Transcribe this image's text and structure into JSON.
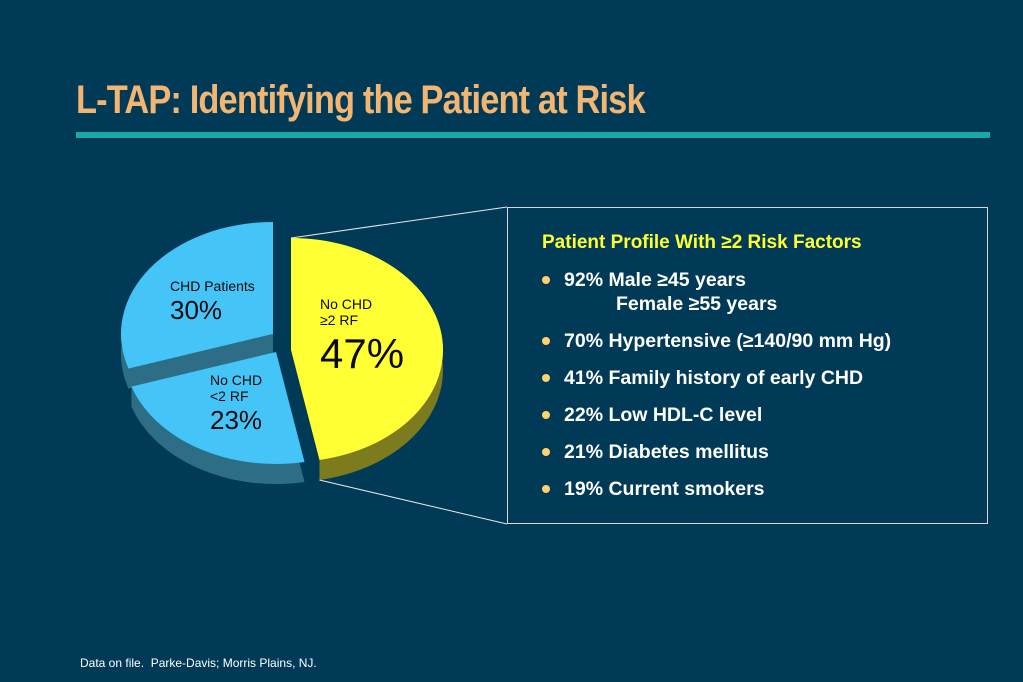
{
  "title": "L-TAP: Identifying the Patient at Risk",
  "colors": {
    "background": "#003a56",
    "title": "#f3b572",
    "rule": "#1aa7a8",
    "heading": "#ffff33"
  },
  "chart_data": {
    "type": "pie",
    "style": "3d-exploded",
    "slices": [
      {
        "label": "No CHD",
        "sublabel": "≥2 RF",
        "value": 47,
        "value_label": "47%",
        "color": "#ffff33",
        "side_color": "#7c7c1e"
      },
      {
        "label": "No CHD",
        "sublabel": "<2 RF",
        "value": 23,
        "value_label": "23%",
        "color": "#45c4f8",
        "side_color": "#2d6e86"
      },
      {
        "label": "CHD Patients",
        "sublabel": "",
        "value": 30,
        "value_label": "30%",
        "color": "#45c4f8",
        "side_color": "#2d6e86"
      }
    ]
  },
  "profile": {
    "heading": "Patient Profile With ≥2 Risk Factors",
    "items": [
      {
        "line1": "92% Male ≥45 years",
        "line2": "Female ≥55 years"
      },
      {
        "line1": "70% Hypertensive (≥140/90 mm Hg)",
        "line2": ""
      },
      {
        "line1": "41% Family history of early CHD",
        "line2": ""
      },
      {
        "line1": "22% Low HDL-C level",
        "line2": ""
      },
      {
        "line1": "21% Diabetes mellitus",
        "line2": ""
      },
      {
        "line1": "19% Current smokers",
        "line2": ""
      }
    ]
  },
  "footnote": "Data on file.  Parke-Davis; Morris Plains, NJ."
}
